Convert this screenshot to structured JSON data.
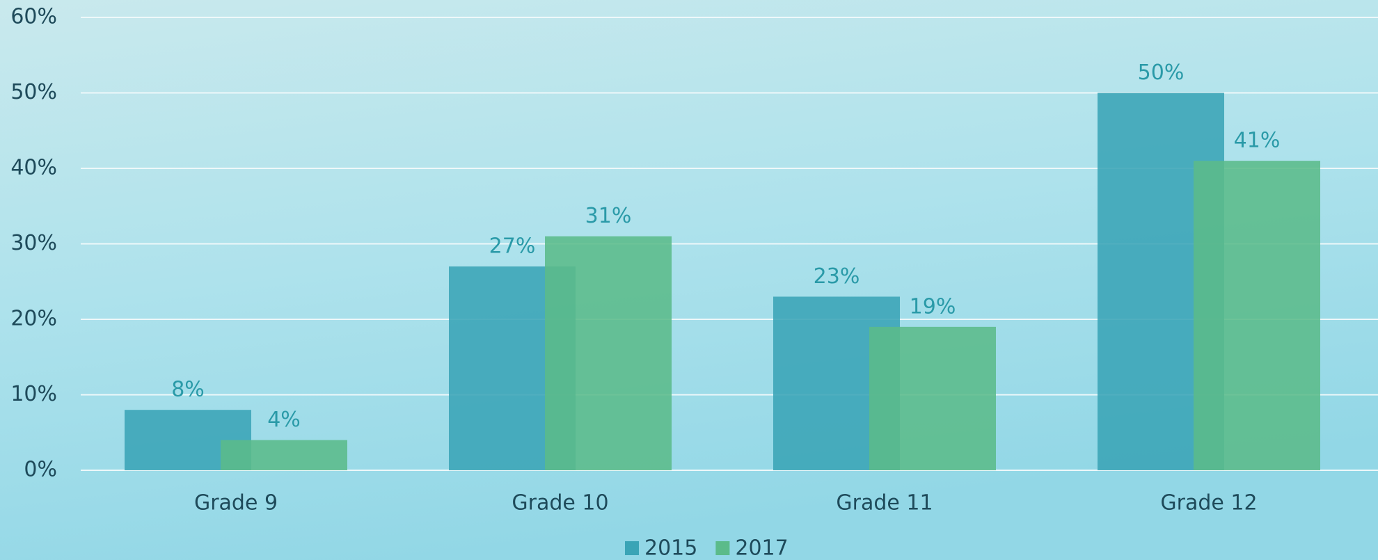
{
  "chart_data": {
    "type": "bar",
    "categories": [
      "Grade 9",
      "Grade 10",
      "Grade 11",
      "Grade 12"
    ],
    "series": [
      {
        "name": "2015",
        "color": "#3aa4b6",
        "values": [
          8,
          27,
          23,
          50
        ],
        "value_labels": [
          "8%",
          "27%",
          "23%",
          "50%"
        ]
      },
      {
        "name": "2017",
        "color": "#5bbb8a",
        "values": [
          4,
          31,
          19,
          41
        ],
        "value_labels": [
          "4%",
          "31%",
          "19%",
          "41%"
        ]
      }
    ],
    "ylim": [
      0,
      60
    ],
    "yticks": [
      {
        "value": 0,
        "label": "0%"
      },
      {
        "value": 10,
        "label": "10%"
      },
      {
        "value": 20,
        "label": "20%"
      },
      {
        "value": 30,
        "label": "30%"
      },
      {
        "value": 40,
        "label": "40%"
      },
      {
        "value": 50,
        "label": "50%"
      },
      {
        "value": 60,
        "label": "60%"
      }
    ],
    "grid": true,
    "legend": "bottom"
  }
}
